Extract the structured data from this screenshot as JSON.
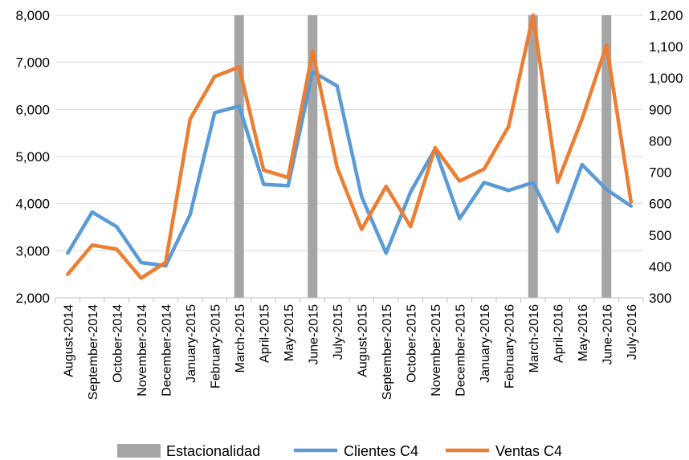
{
  "chart_data": {
    "type": "line",
    "categories": [
      "August-2014",
      "September-2014",
      "October-2014",
      "November-2014",
      "December-2014",
      "January-2015",
      "February-2015",
      "March-2015",
      "April-2015",
      "May-2015",
      "June-2015",
      "July-2015",
      "August-2015",
      "September-2015",
      "October-2015",
      "November-2015",
      "December-2015",
      "January-2016",
      "February-2016",
      "March-2016",
      "April-2016",
      "May-2016",
      "June-2016",
      "July-2016"
    ],
    "left_axis": {
      "ylim": [
        2000,
        8000
      ],
      "ticks": [
        "2,000",
        "3,000",
        "4,000",
        "5,000",
        "6,000",
        "7,000",
        "8,000"
      ],
      "tick_values": [
        2000,
        3000,
        4000,
        5000,
        6000,
        7000,
        8000
      ]
    },
    "right_axis": {
      "ylim": [
        300,
        1200
      ],
      "ticks": [
        "300",
        "400",
        "500",
        "600",
        "700",
        "800",
        "900",
        "1,000",
        "1,100",
        "1,200"
      ],
      "tick_values": [
        300,
        400,
        500,
        600,
        700,
        800,
        900,
        1000,
        1100,
        1200
      ]
    },
    "grid": true,
    "legend_position": "bottom",
    "seasonality": {
      "name": "Estacionalidad",
      "color": "#a5a5a5",
      "categories": [
        "March-2015",
        "June-2015",
        "March-2016",
        "June-2016"
      ]
    },
    "series": [
      {
        "name": "Clientes C4",
        "axis": "left",
        "color": "#5b9bd5",
        "values": [
          2950,
          3820,
          3510,
          2750,
          2680,
          3770,
          5930,
          6070,
          4410,
          4380,
          6800,
          6500,
          4150,
          2950,
          4250,
          5160,
          3680,
          4450,
          4280,
          4450,
          3410,
          4830,
          4300,
          3950
        ]
      },
      {
        "name": "Ventas C4",
        "axis": "right",
        "color": "#ed7d31",
        "values": [
          375,
          468,
          455,
          363,
          413,
          870,
          1005,
          1035,
          707,
          683,
          1085,
          715,
          518,
          655,
          527,
          778,
          672,
          710,
          845,
          1200,
          668,
          870,
          1105,
          605
        ]
      }
    ]
  }
}
